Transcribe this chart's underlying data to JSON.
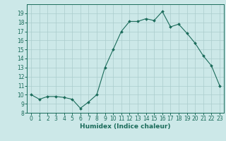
{
  "x": [
    0,
    1,
    2,
    3,
    4,
    5,
    6,
    7,
    8,
    9,
    10,
    11,
    12,
    13,
    14,
    15,
    16,
    17,
    18,
    19,
    20,
    21,
    22,
    23
  ],
  "y": [
    10.0,
    9.5,
    9.8,
    9.8,
    9.7,
    9.5,
    8.5,
    9.2,
    10.0,
    13.0,
    15.0,
    17.0,
    18.1,
    18.1,
    18.4,
    18.2,
    19.2,
    17.5,
    17.8,
    16.8,
    15.7,
    14.3,
    13.2,
    11.0
  ],
  "xlabel": "Humidex (Indice chaleur)",
  "xlim": [
    -0.5,
    23.5
  ],
  "ylim": [
    8,
    20
  ],
  "yticks": [
    8,
    9,
    10,
    11,
    12,
    13,
    14,
    15,
    16,
    17,
    18,
    19
  ],
  "xticks": [
    0,
    1,
    2,
    3,
    4,
    5,
    6,
    7,
    8,
    9,
    10,
    11,
    12,
    13,
    14,
    15,
    16,
    17,
    18,
    19,
    20,
    21,
    22,
    23
  ],
  "line_color": "#1a6b5a",
  "marker": "D",
  "marker_size": 2.0,
  "line_width": 0.8,
  "bg_color": "#cce8e8",
  "grid_color": "#aacccc",
  "tick_label_fontsize": 5.5,
  "xlabel_fontsize": 6.5
}
